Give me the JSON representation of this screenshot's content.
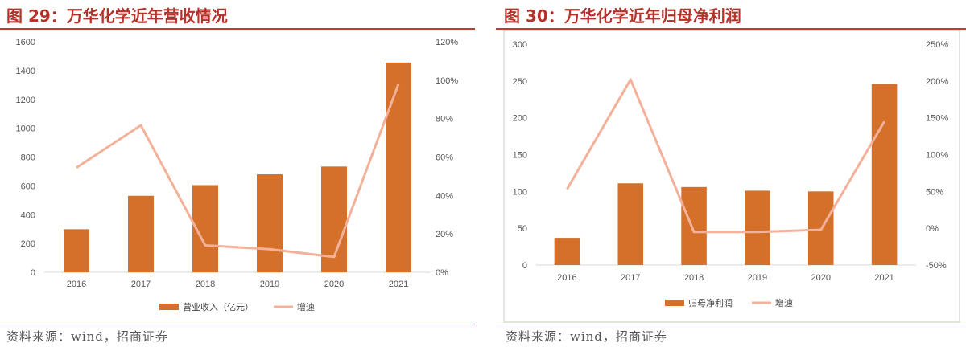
{
  "charts": {
    "left": {
      "title": "图 29：万华化学近年营收情况",
      "source": "资料来源：wind，招商证券"
    },
    "right": {
      "title": "图 30：万华化学近年归母净利润",
      "source": "资料来源：wind，招商证券"
    }
  },
  "colors": {
    "bar": "#d4702a",
    "line": "#f4b19a",
    "title": "#b5322a",
    "rule": "#c23b30",
    "frame": "#c8c8c8"
  },
  "chart_data": [
    {
      "type": "bar",
      "title": "图 29：万华化学近年营收情况",
      "categories": [
        "2016",
        "2017",
        "2018",
        "2019",
        "2020",
        "2021"
      ],
      "series": [
        {
          "name": "营业收入（亿元）",
          "type": "bar",
          "axis": "left",
          "values": [
            299,
            531,
            605,
            680,
            734,
            1456
          ]
        },
        {
          "name": "增速",
          "type": "line",
          "axis": "right",
          "values": [
            54.5,
            76.5,
            14.0,
            12.0,
            8.0,
            98.0
          ]
        }
      ],
      "yleft": {
        "min": 0,
        "max": 1600,
        "ticks": [
          "0",
          "200",
          "400",
          "600",
          "800",
          "1000",
          "1200",
          "1400",
          "1600"
        ]
      },
      "yright": {
        "min": 0,
        "max": 120,
        "ticks": [
          "0%",
          "20%",
          "40%",
          "60%",
          "80%",
          "100%",
          "120%"
        ]
      },
      "legend": [
        "营业收入（亿元）",
        "增速"
      ],
      "legend_position": "bottom",
      "grid": false
    },
    {
      "type": "bar",
      "title": "图 30：万华化学近年归母净利润",
      "categories": [
        "2016",
        "2017",
        "2018",
        "2019",
        "2020",
        "2021"
      ],
      "series": [
        {
          "name": "归母净利润",
          "type": "bar",
          "axis": "left",
          "values": [
            37,
            111,
            106,
            101,
            100,
            246
          ]
        },
        {
          "name": "增速",
          "type": "line",
          "axis": "right",
          "values": [
            53,
            202,
            -5,
            -5,
            -2,
            145
          ]
        }
      ],
      "yleft": {
        "min": 0,
        "max": 300,
        "ticks": [
          "0",
          "50",
          "100",
          "150",
          "200",
          "250",
          "300"
        ]
      },
      "yright": {
        "min": -50,
        "max": 250,
        "ticks": [
          "-50%",
          "0%",
          "50%",
          "100%",
          "150%",
          "200%",
          "250%"
        ]
      },
      "legend": [
        "归母净利润",
        "增速"
      ],
      "legend_position": "bottom",
      "grid": false
    }
  ]
}
